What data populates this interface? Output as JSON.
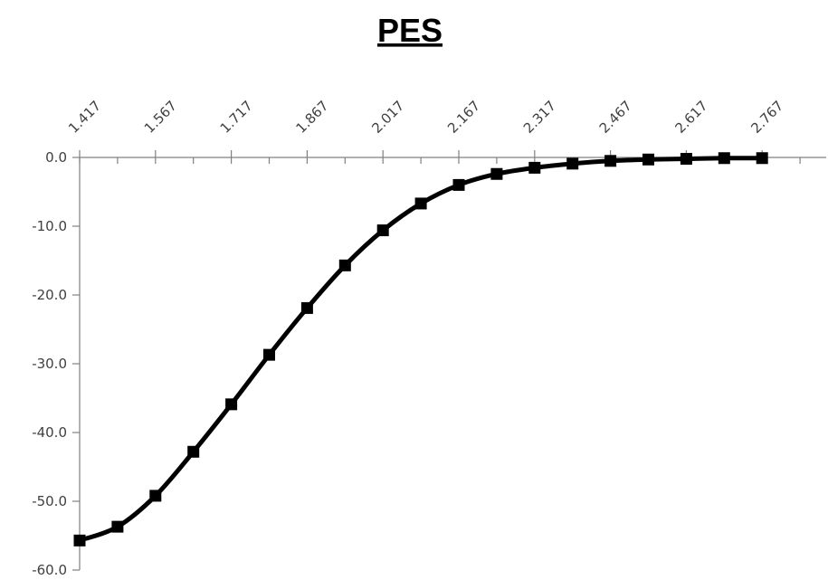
{
  "chart_data": {
    "type": "line",
    "title": "PES",
    "xlabel": "",
    "ylabel": "",
    "x_axis_position": "top",
    "x_tick_labels": [
      "1.417",
      "1.567",
      "1.717",
      "1.867",
      "2.017",
      "2.167",
      "2.317",
      "2.467",
      "2.617",
      "2.767"
    ],
    "y_tick_labels": [
      "0.0",
      "-10.0",
      "-20.0",
      "-30.0",
      "-40.0",
      "-50.0",
      "-60.0"
    ],
    "ylim": [
      -60,
      0
    ],
    "grid": false,
    "legend": "none",
    "series": [
      {
        "color": "#000000",
        "marker": "square",
        "x": [
          1.417,
          1.492,
          1.567,
          1.642,
          1.717,
          1.792,
          1.867,
          1.942,
          2.017,
          2.092,
          2.167,
          2.242,
          2.317,
          2.392,
          2.467,
          2.542,
          2.617,
          2.692,
          2.767
        ],
        "values": [
          -55.7,
          -53.7,
          -49.2,
          -42.8,
          -35.9,
          -28.7,
          -21.9,
          -15.7,
          -10.6,
          -6.7,
          -4.0,
          -2.4,
          -1.5,
          -0.9,
          -0.5,
          -0.3,
          -0.2,
          -0.1,
          -0.1
        ]
      }
    ]
  }
}
